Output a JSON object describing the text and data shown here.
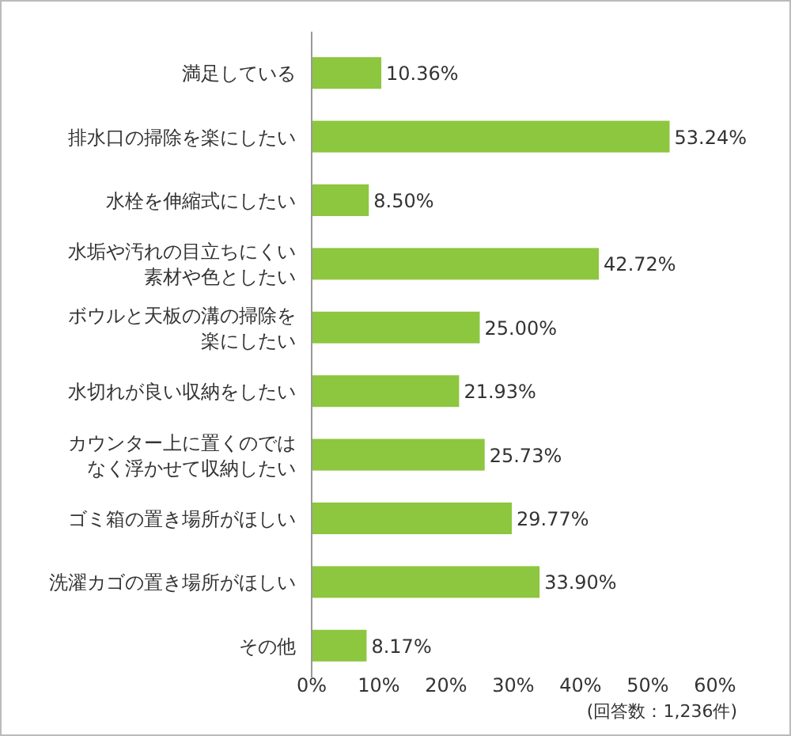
{
  "chart_data": {
    "type": "bar",
    "orientation": "horizontal",
    "categories": [
      "満足している",
      "排水口の掃除を楽にしたい",
      "水栓を伸縮式にしたい",
      "水垢や汚れの目立ちにくい素材や色としたい",
      "ボウルと天板の溝の掃除を楽にしたい",
      "水切れが良い収納をしたい",
      "カウンター上に置くのではなく浮かせて収納したい",
      "ゴミ箱の置き場所がほしい",
      "洗濯カゴの置き場所がほしい",
      "その他"
    ],
    "values": [
      10.36,
      53.24,
      8.5,
      42.72,
      25.0,
      21.93,
      25.73,
      29.77,
      33.9,
      8.17
    ],
    "value_labels": [
      "10.36%",
      "53.24%",
      "8.50%",
      "42.72%",
      "25.00%",
      "21.93%",
      "25.73%",
      "29.77%",
      "33.90%",
      "8.17%"
    ],
    "color": "#8dc63f",
    "xlim": [
      0,
      60
    ],
    "xticks": [
      {
        "value": 0,
        "label": "0%"
      },
      {
        "value": 10,
        "label": "10%"
      },
      {
        "value": 20,
        "label": "20%"
      },
      {
        "value": 30,
        "label": "30%"
      },
      {
        "value": 40,
        "label": "40%"
      },
      {
        "value": 50,
        "label": "50%"
      },
      {
        "value": 60,
        "label": "60%"
      }
    ],
    "grid": false,
    "annotations": [
      "(回答数：1,236件)"
    ]
  }
}
